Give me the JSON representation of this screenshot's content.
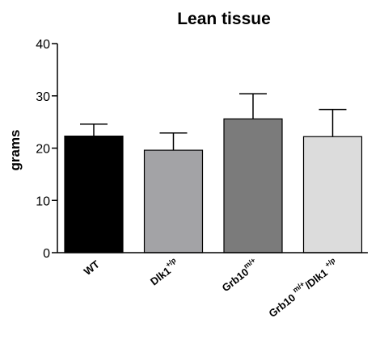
{
  "chart_data": {
    "type": "bar",
    "title": "Lean tissue",
    "ylabel": "grams",
    "xlabel": "",
    "ylim": [
      0,
      40
    ],
    "yticks": [
      0,
      10,
      20,
      30,
      40
    ],
    "grid": false,
    "categories": [
      {
        "base": "WT",
        "sup": "",
        "tail": ""
      },
      {
        "base": "Dlk1",
        "sup": "+/p",
        "tail": ""
      },
      {
        "base": "Grb10",
        "sup": "m/+",
        "tail": ""
      },
      {
        "base": "Grb10 ",
        "sup": "m/+",
        "tail": "/Dlk1 ",
        "sup2": "+/p"
      }
    ],
    "values": [
      22.3,
      19.6,
      25.6,
      22.2
    ],
    "errors": [
      2.3,
      3.3,
      4.8,
      5.2
    ],
    "colors": [
      "#000000",
      "#a3a3a6",
      "#7b7b7b",
      "#dcdcdc"
    ]
  }
}
